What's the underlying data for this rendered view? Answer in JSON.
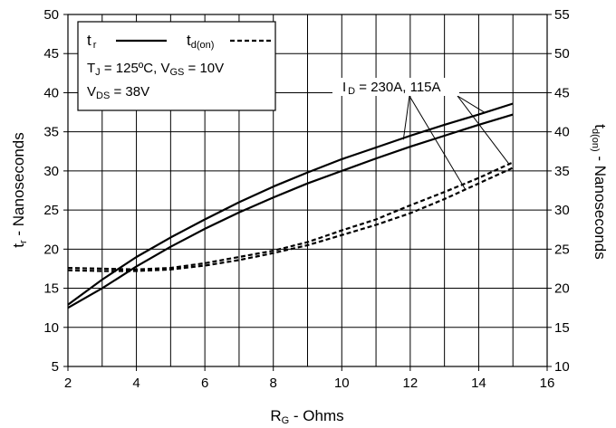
{
  "chart_data": {
    "type": "line",
    "x_axis": {
      "label_main": "R",
      "label_sub": "G",
      "label_rest": " - Ohms",
      "range": [
        2,
        16
      ],
      "ticks": [
        2,
        4,
        6,
        8,
        10,
        12,
        14,
        16
      ]
    },
    "y_left": {
      "label_main": "t",
      "label_sub": "r",
      "label_rest": " - Nanoseconds",
      "range": [
        5,
        50
      ],
      "ticks": [
        5,
        10,
        15,
        20,
        25,
        30,
        35,
        40,
        45,
        50
      ]
    },
    "y_right": {
      "label_main": "t",
      "label_sub": "d(on)",
      "label_rest": " - Nanoseconds",
      "range": [
        10,
        55
      ],
      "ticks": [
        10,
        15,
        20,
        25,
        30,
        35,
        40,
        45,
        50,
        55
      ]
    },
    "grid": true,
    "legend": {
      "placement": "top-left",
      "tr_main": "t",
      "tr_sub": "r",
      "td_main": "t",
      "td_sub": "d(on)",
      "cond_tj_main": "T",
      "cond_tj_sub": "J",
      "cond_tj_rest": " = 125ºC,  V",
      "cond_vgs_sub": "GS",
      "cond_vgs_rest": " = 10V",
      "cond_vds_main": "V",
      "cond_vds_sub": "DS",
      "cond_vds_rest": " = 38V"
    },
    "annotation": {
      "main": "I",
      "sub": "D",
      "rest": " = 230A, 115A"
    },
    "series": [
      {
        "axis": "left",
        "style": "solid",
        "x": [
          2,
          3,
          4,
          5,
          6,
          7,
          8,
          9,
          10,
          11,
          12,
          13,
          14,
          15
        ],
        "y": [
          12.9,
          16.1,
          19.0,
          21.5,
          23.8,
          26.0,
          28.0,
          29.8,
          31.5,
          33.0,
          34.5,
          35.9,
          37.2,
          38.6
        ]
      },
      {
        "axis": "left",
        "style": "solid",
        "x": [
          2,
          3,
          4,
          5,
          6,
          7,
          8,
          9,
          10,
          11,
          12,
          13,
          14,
          15
        ],
        "y": [
          12.5,
          15.0,
          17.8,
          20.3,
          22.6,
          24.7,
          26.6,
          28.4,
          30.0,
          31.6,
          33.1,
          34.5,
          35.9,
          37.2
        ]
      },
      {
        "axis": "right",
        "style": "dashed",
        "x": [
          2,
          3,
          4,
          5,
          6,
          7,
          8,
          9,
          10,
          11,
          12,
          13,
          14,
          15
        ],
        "y": [
          22.6,
          22.5,
          22.4,
          22.6,
          23.2,
          24.0,
          24.8,
          25.9,
          27.4,
          28.8,
          30.6,
          32.3,
          34.1,
          36.1
        ]
      },
      {
        "axis": "right",
        "style": "dashed",
        "x": [
          2,
          3,
          4,
          5,
          6,
          7,
          8,
          9,
          10,
          11,
          12,
          13,
          14,
          15
        ],
        "y": [
          22.3,
          22.2,
          22.2,
          22.4,
          22.9,
          23.6,
          24.5,
          25.5,
          26.8,
          28.1,
          29.6,
          31.4,
          33.4,
          35.4
        ]
      }
    ]
  }
}
